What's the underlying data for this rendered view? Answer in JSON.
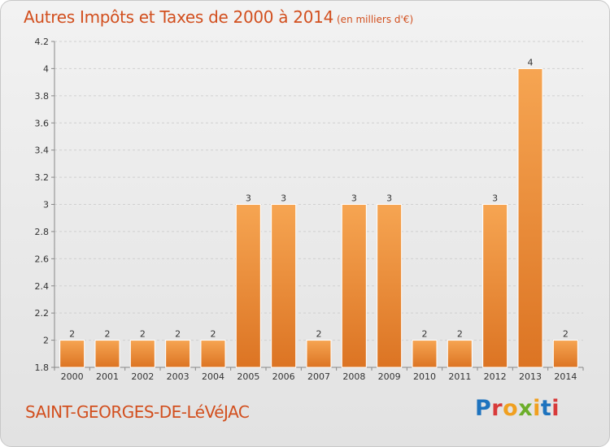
{
  "header": {
    "title": "Autres Impôts et Taxes de 2000 à 2014",
    "subtitle": "(en milliers d'€)"
  },
  "footer": {
    "commune": "SAINT-GEORGES-DE-LéVéJAC",
    "logo": "Proxiti"
  },
  "colors": {
    "bar_top": "#f6a552",
    "bar_bottom": "#dc7423",
    "title": "#d24f1e"
  },
  "chart_data": {
    "type": "bar",
    "title": "Autres Impôts et Taxes de 2000 à 2014",
    "subtitle": "(en milliers d'€)",
    "xlabel": "",
    "ylabel": "",
    "categories": [
      "2000",
      "2001",
      "2002",
      "2003",
      "2004",
      "2005",
      "2006",
      "2007",
      "2008",
      "2009",
      "2010",
      "2011",
      "2012",
      "2013",
      "2014"
    ],
    "values": [
      2,
      2,
      2,
      2,
      2,
      3,
      3,
      2,
      3,
      3,
      2,
      2,
      3,
      4,
      2
    ],
    "data_labels": [
      "2",
      "2",
      "2",
      "2",
      "2",
      "3",
      "3",
      "2",
      "3",
      "3",
      "2",
      "2",
      "3",
      "4",
      "2"
    ],
    "ylim": [
      1.8,
      4.2
    ],
    "yticks": [
      1.8,
      2,
      2.2,
      2.4,
      2.6,
      2.8,
      3,
      3.2,
      3.4,
      3.6,
      3.8,
      4,
      4.2
    ],
    "ytick_labels": [
      "1.8",
      "2",
      "2.2",
      "2.4",
      "2.6",
      "2.8",
      "3",
      "3.2",
      "3.4",
      "3.6",
      "3.8",
      "4",
      "4.2"
    ],
    "grid": true,
    "legend": "none"
  }
}
